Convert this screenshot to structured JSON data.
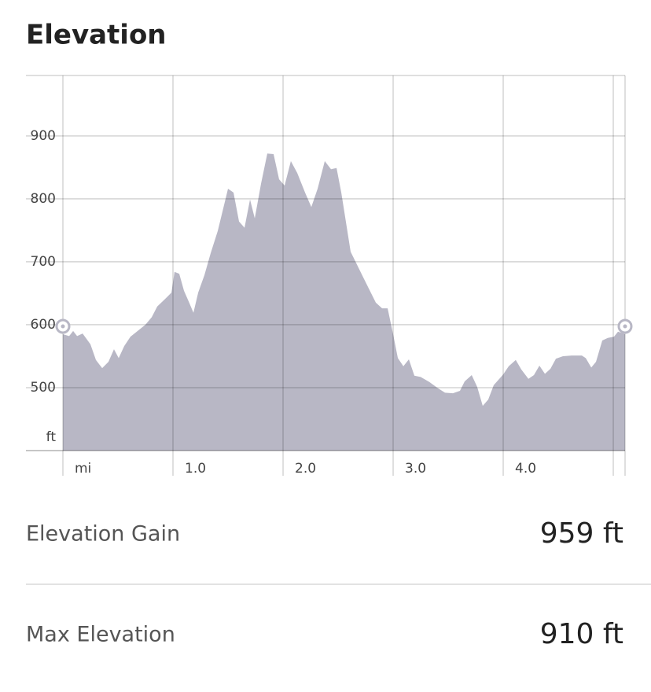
{
  "title": "Elevation",
  "chart_data": {
    "type": "area",
    "color": "#b8b7c5",
    "x": [
      0,
      0.057,
      0.093,
      0.129,
      0.179,
      0.25,
      0.3,
      0.357,
      0.414,
      0.464,
      0.507,
      0.557,
      0.614,
      0.679,
      0.75,
      0.807,
      0.857,
      0.929,
      0.986,
      1.014,
      1.057,
      1.1,
      1.15,
      1.186,
      1.229,
      1.286,
      1.343,
      1.407,
      1.5,
      1.55,
      1.6,
      1.65,
      1.7,
      1.743,
      1.8,
      1.857,
      1.914,
      1.964,
      2.014,
      2.071,
      2.129,
      2.2,
      2.257,
      2.314,
      2.379,
      2.436,
      2.486,
      2.529,
      2.614,
      2.729,
      2.843,
      2.9,
      2.95,
      3.0,
      3.043,
      3.093,
      3.143,
      3.193,
      3.25,
      3.329,
      3.4,
      3.471,
      3.543,
      3.607,
      3.65,
      3.714,
      3.764,
      3.814,
      3.864,
      3.914,
      4.0,
      4.05,
      4.114,
      4.164,
      4.229,
      4.279,
      4.329,
      4.379,
      4.429,
      4.479,
      4.543,
      4.621,
      4.714,
      4.75,
      4.8,
      4.843,
      4.9,
      4.95,
      5.007,
      5.043,
      5.107
    ],
    "values": [
      585,
      582,
      590,
      582,
      586,
      569,
      544,
      531,
      541,
      561,
      547,
      566,
      581,
      590,
      600,
      612,
      629,
      641,
      651,
      684,
      681,
      654,
      634,
      619,
      651,
      679,
      714,
      749,
      816,
      810,
      764,
      754,
      799,
      769,
      824,
      872,
      871,
      831,
      821,
      860,
      841,
      810,
      787,
      816,
      860,
      847,
      849,
      810,
      716,
      675,
      635,
      626,
      626,
      585,
      547,
      534,
      545,
      519,
      517,
      509,
      500,
      492,
      491,
      495,
      510,
      520,
      501,
      471,
      481,
      504,
      521,
      534,
      544,
      529,
      514,
      520,
      535,
      522,
      530,
      546,
      550,
      551,
      551,
      547,
      532,
      541,
      575,
      579,
      581,
      589,
      585
    ],
    "xlim": [
      0,
      5.107
    ],
    "ylim": [
      400,
      996
    ],
    "xticks": [
      {
        "value": 0,
        "label": "mi"
      },
      {
        "value": 1,
        "label": "1.0"
      },
      {
        "value": 2,
        "label": "2.0"
      },
      {
        "value": 3,
        "label": "3.0"
      },
      {
        "value": 4,
        "label": "4.0"
      },
      {
        "value": 5,
        "label": null
      }
    ],
    "yticks": [
      500,
      600,
      700,
      800,
      900
    ],
    "y_unit": "ft",
    "grid": true
  },
  "stats": [
    {
      "label": "Elevation Gain",
      "value": "959 ft"
    },
    {
      "label": "Max Elevation",
      "value": "910 ft"
    }
  ]
}
